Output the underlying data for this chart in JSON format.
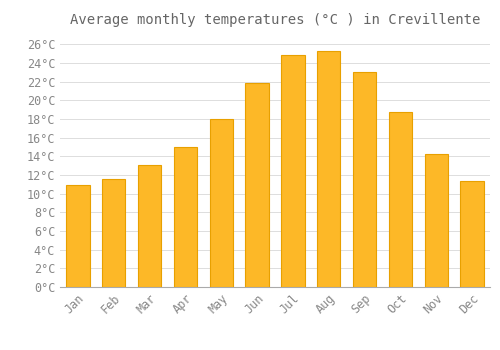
{
  "title": "Average monthly temperatures (°C ) in Crevillente",
  "months": [
    "Jan",
    "Feb",
    "Mar",
    "Apr",
    "May",
    "Jun",
    "Jul",
    "Aug",
    "Sep",
    "Oct",
    "Nov",
    "Dec"
  ],
  "values": [
    10.9,
    11.6,
    13.1,
    15.0,
    18.0,
    21.9,
    24.9,
    25.3,
    23.0,
    18.8,
    14.3,
    11.4
  ],
  "bar_color": "#FDB827",
  "bar_edge_color": "#E8A000",
  "background_color": "#FFFFFF",
  "grid_color": "#DDDDDD",
  "text_color": "#888888",
  "title_color": "#666666",
  "ylim": [
    0,
    27
  ],
  "yticks": [
    0,
    2,
    4,
    6,
    8,
    10,
    12,
    14,
    16,
    18,
    20,
    22,
    24,
    26
  ],
  "title_fontsize": 10,
  "tick_fontsize": 8.5,
  "bar_width": 0.65
}
